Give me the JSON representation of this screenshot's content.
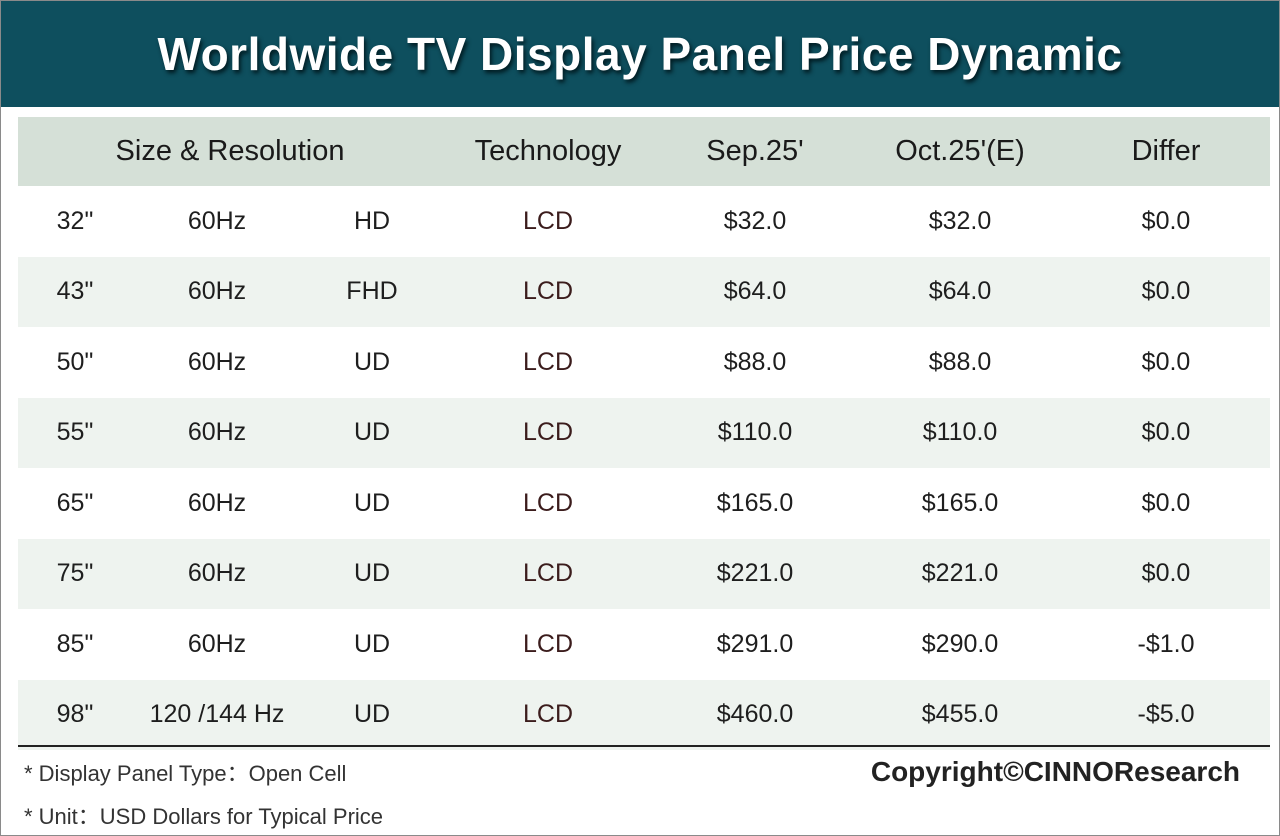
{
  "title": "Worldwide TV Display Panel Price Dynamic",
  "colors": {
    "banner": "#0e4f5e",
    "header_row": "#d5e0d7",
    "alt_row": "#eef3ef"
  },
  "chart_data": {
    "type": "table",
    "title": "Worldwide TV Display Panel Price Dynamic",
    "columns": [
      "Size & Resolution",
      "Technology",
      "Sep.25'",
      "Oct.25'(E)",
      "Differ"
    ],
    "rows": [
      {
        "size": "32\"",
        "refresh": "60Hz",
        "resolution": "HD",
        "technology": "LCD",
        "sep": "$32.0",
        "oct": "$32.0",
        "differ": "$0.0"
      },
      {
        "size": "43\"",
        "refresh": "60Hz",
        "resolution": "FHD",
        "technology": "LCD",
        "sep": "$64.0",
        "oct": "$64.0",
        "differ": "$0.0"
      },
      {
        "size": "50\"",
        "refresh": "60Hz",
        "resolution": "UD",
        "technology": "LCD",
        "sep": "$88.0",
        "oct": "$88.0",
        "differ": "$0.0"
      },
      {
        "size": "55\"",
        "refresh": "60Hz",
        "resolution": "UD",
        "technology": "LCD",
        "sep": "$110.0",
        "oct": "$110.0",
        "differ": "$0.0"
      },
      {
        "size": "65\"",
        "refresh": "60Hz",
        "resolution": "UD",
        "technology": "LCD",
        "sep": "$165.0",
        "oct": "$165.0",
        "differ": "$0.0"
      },
      {
        "size": "75\"",
        "refresh": "60Hz",
        "resolution": "UD",
        "technology": "LCD",
        "sep": "$221.0",
        "oct": "$221.0",
        "differ": "$0.0"
      },
      {
        "size": "85\"",
        "refresh": "60Hz",
        "resolution": "UD",
        "technology": "LCD",
        "sep": "$291.0",
        "oct": "$290.0",
        "differ": "-$1.0"
      },
      {
        "size": "98\"",
        "refresh": "120 /144 Hz",
        "resolution": "UD",
        "technology": "LCD",
        "sep": "$460.0",
        "oct": "$455.0",
        "differ": "-$5.0"
      }
    ]
  },
  "footnotes": [
    "* Display Panel Type：Open Cell",
    "* Unit：USD Dollars for Typical Price"
  ],
  "copyright": "Copyright©CINNOResearch"
}
